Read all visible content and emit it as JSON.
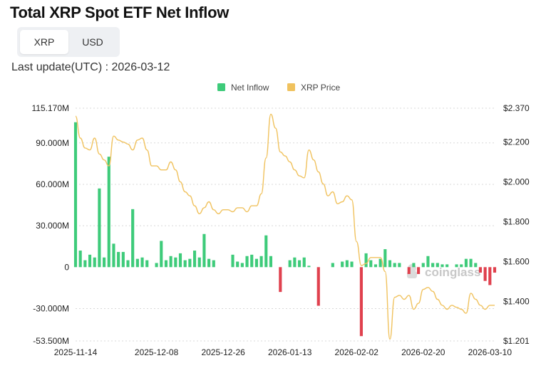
{
  "title": "Total XRP Spot ETF Net Inflow",
  "toggle": {
    "options": [
      "XRP",
      "USD"
    ],
    "active": "XRP"
  },
  "last_update": "Last update(UTC) : 2026-03-12",
  "watermark": "coinglass",
  "colors": {
    "positive": "#3ecb7a",
    "negative": "#e0414e",
    "price": "#f0c25e",
    "grid": "#d8d8d8"
  },
  "chart_data": {
    "type": "bar+line",
    "legend": [
      {
        "name": "Net Inflow",
        "color": "#3ecb7a"
      },
      {
        "name": "XRP Price",
        "color": "#f0c25e"
      }
    ],
    "y_left": {
      "min": -53500000,
      "max": 115170000,
      "ticks": [
        115170000,
        90000000,
        60000000,
        30000000,
        0,
        -30000000,
        -53500000
      ],
      "tick_labels": [
        "115.170M",
        "90.000M",
        "60.000M",
        "30.000M",
        "0",
        "-30.000M",
        "-53.500M"
      ]
    },
    "y_right": {
      "min": 1.201,
      "max": 2.37,
      "ticks": [
        2.37,
        2.2,
        2.0,
        1.8,
        1.6,
        1.4,
        1.201
      ],
      "tick_labels": [
        "$2.370",
        "$2.200",
        "$2.000",
        "$1.800",
        "$1.600",
        "$1.400",
        "$1.201"
      ]
    },
    "x_tick_labels": [
      {
        "label": "2025-11-14",
        "index": 0
      },
      {
        "label": "2025-12-08",
        "index": 17
      },
      {
        "label": "2025-12-26",
        "index": 31
      },
      {
        "label": "2026-01-13",
        "index": 45
      },
      {
        "label": "2026-02-02",
        "index": 59
      },
      {
        "label": "2026-02-20",
        "index": 73
      },
      {
        "label": "2026-03-10",
        "index": 87
      }
    ],
    "n_points": 89,
    "net_inflow": [
      105000000,
      12000000,
      5000000,
      9000000,
      7000000,
      57000000,
      7000000,
      80000000,
      17000000,
      11000000,
      11000000,
      5000000,
      42000000,
      6000000,
      7000000,
      5000000,
      0,
      3000000,
      19000000,
      5000000,
      8000000,
      7000000,
      10000000,
      5000000,
      6000000,
      12000000,
      7000000,
      24000000,
      6000000,
      5000000,
      0,
      0,
      0,
      9000000,
      4000000,
      3000000,
      8000000,
      9000000,
      6000000,
      8000000,
      23000000,
      8000000,
      0,
      -18000000,
      0,
      5000000,
      7000000,
      5000000,
      7000000,
      1000000,
      0,
      -28000000,
      0,
      0,
      3000000,
      0,
      4000000,
      5000000,
      4000000,
      0,
      -50000000,
      10000000,
      5000000,
      2000000,
      6000000,
      13000000,
      5000000,
      3000000,
      3000000,
      0,
      -5000000,
      3000000,
      -5000000,
      3000000,
      8000000,
      3000000,
      3000000,
      2000000,
      2000000,
      0,
      2000000,
      2000000,
      6000000,
      6000000,
      3000000,
      -4000000,
      -10000000,
      -13000000,
      -4000000
    ],
    "xrp_price": [
      2.33,
      2.22,
      2.17,
      2.16,
      2.22,
      2.14,
      2.11,
      2.08,
      2.23,
      2.21,
      2.2,
      2.19,
      2.16,
      2.21,
      2.22,
      2.16,
      2.08,
      2.08,
      2.06,
      2.06,
      2.1,
      2.06,
      2.0,
      1.95,
      1.93,
      1.88,
      1.84,
      1.87,
      1.9,
      1.86,
      1.84,
      1.86,
      1.86,
      1.85,
      1.87,
      1.87,
      1.85,
      1.88,
      1.88,
      1.94,
      2.12,
      2.34,
      2.27,
      2.15,
      2.13,
      2.1,
      2.06,
      2.03,
      2.02,
      2.16,
      2.11,
      2.05,
      1.99,
      1.93,
      1.95,
      1.89,
      1.9,
      1.93,
      1.91,
      1.7,
      1.58,
      1.59,
      1.62,
      1.62,
      1.62,
      1.55,
      1.21,
      1.42,
      1.43,
      1.41,
      1.43,
      1.36,
      1.39,
      1.46,
      1.47,
      1.45,
      1.41,
      1.38,
      1.36,
      1.38,
      1.37,
      1.36,
      1.34,
      1.44,
      1.41,
      1.38,
      1.36,
      1.38,
      1.38
    ]
  }
}
